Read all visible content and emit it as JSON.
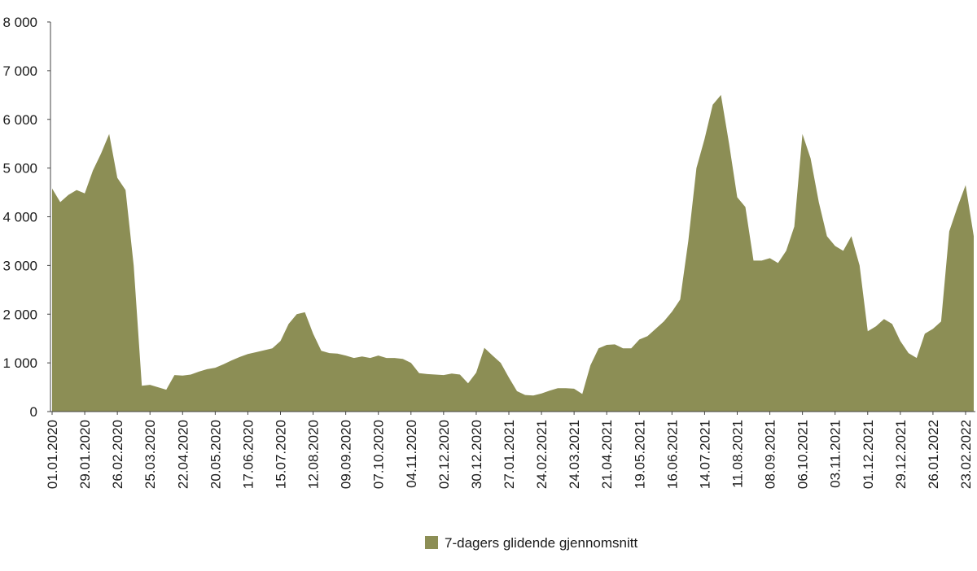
{
  "chart_data": {
    "type": "area",
    "categories": [
      "01.01.2020",
      null,
      null,
      null,
      "29.01.2020",
      null,
      null,
      null,
      "26.02.2020",
      null,
      null,
      null,
      "25.03.2020",
      null,
      null,
      null,
      "22.04.2020",
      null,
      null,
      null,
      "20.05.2020",
      null,
      null,
      null,
      "17.06.2020",
      null,
      null,
      null,
      "15.07.2020",
      null,
      null,
      null,
      "12.08.2020",
      null,
      null,
      null,
      "09.09.2020",
      null,
      null,
      null,
      "07.10.2020",
      null,
      null,
      null,
      "04.11.2020",
      null,
      null,
      null,
      "02.12.2020",
      null,
      null,
      null,
      "30.12.2020",
      null,
      null,
      null,
      "27.01.2021",
      null,
      null,
      null,
      "24.02.2021",
      null,
      null,
      null,
      "24.03.2021",
      null,
      null,
      null,
      "21.04.2021",
      null,
      null,
      null,
      "19.05.2021",
      null,
      null,
      null,
      "16.06.2021",
      null,
      null,
      null,
      "14.07.2021",
      null,
      null,
      null,
      "11.08.2021",
      null,
      null,
      null,
      "08.09.2021",
      null,
      null,
      null,
      "06.10.2021",
      null,
      null,
      null,
      "03.11.2021",
      null,
      null,
      null,
      "01.12.2021",
      null,
      null,
      null,
      "29.12.2021",
      null,
      null,
      null,
      "26.01.2022",
      null,
      null,
      null,
      "23.02.2022",
      null
    ],
    "series": [
      {
        "name": "7-dagers glidende gjennomsnitt",
        "color": "#8c8e55",
        "values": [
          4580,
          4300,
          4450,
          4550,
          4480,
          4950,
          5300,
          5700,
          4800,
          4550,
          3000,
          530,
          550,
          500,
          450,
          750,
          740,
          760,
          820,
          870,
          900,
          970,
          1050,
          1120,
          1180,
          1220,
          1260,
          1300,
          1450,
          1800,
          2000,
          2040,
          1600,
          1250,
          1200,
          1190,
          1150,
          1100,
          1130,
          1100,
          1150,
          1100,
          1100,
          1080,
          1000,
          790,
          770,
          760,
          750,
          780,
          760,
          580,
          800,
          1310,
          1150,
          1000,
          700,
          420,
          340,
          330,
          370,
          430,
          480,
          480,
          470,
          360,
          950,
          1300,
          1370,
          1380,
          1300,
          1300,
          1480,
          1550,
          1700,
          1850,
          2050,
          2300,
          3500,
          5000,
          5600,
          6300,
          6500,
          5500,
          4400,
          4200,
          3100,
          3100,
          3150,
          3050,
          3300,
          3800,
          5700,
          5200,
          4300,
          3600,
          3400,
          3300,
          3600,
          3000,
          1650,
          1750,
          1900,
          1800,
          1450,
          1200,
          1100,
          1600,
          1700,
          1850,
          3700,
          4200,
          4650,
          3600
        ]
      }
    ],
    "ylim": [
      0,
      8000
    ],
    "yticks": [
      0,
      {
        "value": 1000,
        "label": "1 000"
      },
      {
        "value": 2000,
        "label": "2 000"
      },
      {
        "value": 3000,
        "label": "3 000"
      },
      {
        "value": 4000,
        "label": "4 000"
      },
      {
        "value": 5000,
        "label": "5 000"
      },
      {
        "value": 6000,
        "label": "6 000"
      },
      {
        "value": 7000,
        "label": "7 000"
      },
      {
        "value": 8000,
        "label": "8 000"
      }
    ],
    "legend": "bottom"
  }
}
